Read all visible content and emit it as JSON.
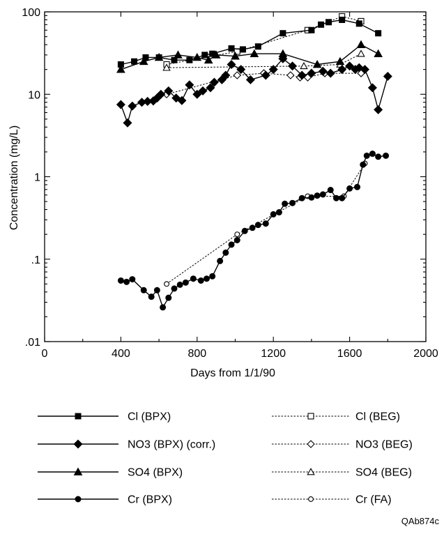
{
  "chart_data": {
    "type": "line",
    "xlabel": "Days from 1/1/90",
    "ylabel": "Concentration (mg/L)",
    "xlim": [
      0,
      2000
    ],
    "ylim": [
      0.01,
      100
    ],
    "yscale": "log",
    "grid": false,
    "legend_position": "below",
    "xticks": [
      0,
      400,
      800,
      1200,
      1600,
      2000
    ],
    "xtick_labels": [
      "0",
      "400",
      "800",
      "1200",
      "1600",
      "2000"
    ],
    "yticks": [
      0.01,
      0.1,
      1,
      10,
      100
    ],
    "ytick_labels": [
      ".01",
      ".1",
      "1",
      "10",
      "100"
    ],
    "series": [
      {
        "name": "Cl (BPX)",
        "marker": "square",
        "filled": true,
        "dashed": false,
        "x": [
          400,
          470,
          530,
          600,
          680,
          760,
          840,
          880,
          980,
          1040,
          1120,
          1250,
          1400,
          1450,
          1490,
          1560,
          1650,
          1750
        ],
        "y": [
          23,
          25,
          28,
          28,
          26,
          26,
          30,
          31,
          36,
          35,
          38,
          55,
          60,
          70,
          75,
          80,
          72,
          55
        ]
      },
      {
        "name": "NO3 (BPX) (corr.)",
        "marker": "diamond",
        "filled": true,
        "dashed": false,
        "x": [
          400,
          435,
          460,
          510,
          540,
          570,
          590,
          610,
          650,
          690,
          720,
          760,
          800,
          830,
          870,
          890,
          930,
          950,
          980,
          1030,
          1080,
          1160,
          1200,
          1250,
          1300,
          1350,
          1400,
          1460,
          1500,
          1560,
          1600,
          1630,
          1650,
          1680,
          1720,
          1750,
          1800
        ],
        "y": [
          7.5,
          4.5,
          7.2,
          8.0,
          8.2,
          8.3,
          9.0,
          10,
          11,
          9.0,
          8.4,
          13,
          10,
          11,
          12,
          14,
          15,
          17,
          23,
          20,
          15,
          17,
          20,
          27,
          22,
          17,
          18,
          19,
          18,
          20,
          22,
          20,
          21,
          20,
          12,
          6.5,
          16.5
        ]
      },
      {
        "name": "SO4 (BPX)",
        "marker": "triangle",
        "filled": true,
        "dashed": false,
        "x": [
          400,
          520,
          600,
          700,
          800,
          860,
          900,
          1000,
          1100,
          1250,
          1430,
          1550,
          1660,
          1750
        ],
        "y": [
          20,
          25,
          28,
          30,
          28,
          26,
          30,
          29,
          31,
          31,
          23,
          25,
          40,
          31
        ]
      },
      {
        "name": "Cr (BPX)",
        "marker": "circle",
        "filled": true,
        "dashed": false,
        "x": [
          400,
          430,
          460,
          520,
          560,
          590,
          620,
          650,
          680,
          710,
          740,
          780,
          820,
          850,
          880,
          920,
          950,
          980,
          1010,
          1050,
          1090,
          1120,
          1160,
          1200,
          1230,
          1260,
          1300,
          1350,
          1400,
          1430,
          1460,
          1500,
          1530,
          1560,
          1600,
          1640,
          1670,
          1690,
          1720,
          1750,
          1790
        ],
        "y": [
          0.055,
          0.053,
          0.057,
          0.042,
          0.035,
          0.042,
          0.026,
          0.034,
          0.044,
          0.049,
          0.052,
          0.058,
          0.055,
          0.058,
          0.062,
          0.095,
          0.12,
          0.15,
          0.17,
          0.22,
          0.24,
          0.26,
          0.27,
          0.35,
          0.37,
          0.47,
          0.48,
          0.55,
          0.56,
          0.59,
          0.61,
          0.69,
          0.55,
          0.55,
          0.72,
          0.75,
          1.4,
          1.8,
          1.9,
          1.75,
          1.8
        ]
      },
      {
        "name": "Cl (BEG)",
        "marker": "square",
        "filled": false,
        "dashed": true,
        "x": [
          640,
          1010,
          1380,
          1560,
          1660
        ],
        "y": [
          23,
          33,
          60,
          88,
          77
        ]
      },
      {
        "name": "NO3 (BEG)",
        "marker": "diamond",
        "filled": false,
        "dashed": true,
        "x": [
          640,
          1010,
          1150,
          1290,
          1340,
          1380,
          1470,
          1660
        ],
        "y": [
          10,
          17,
          18,
          17,
          16,
          16,
          18,
          18
        ]
      },
      {
        "name": "SO4 (BEG)",
        "marker": "triangle",
        "filled": false,
        "dashed": true,
        "x": [
          640,
          1360,
          1550,
          1660
        ],
        "y": [
          21,
          22,
          23,
          31
        ]
      },
      {
        "name": "Cr (FA)",
        "marker": "circle",
        "filled": false,
        "dashed": true,
        "x": [
          640,
          1010,
          1380,
          1570,
          1680
        ],
        "y": [
          0.05,
          0.2,
          0.58,
          0.58,
          1.45
        ]
      }
    ],
    "legend": {
      "left": [
        "Cl (BPX)",
        "NO3 (BPX) (corr.)",
        "SO4 (BPX)",
        "Cr (BPX)"
      ],
      "right": [
        "Cl (BEG)",
        "NO3 (BEG)",
        "SO4 (BEG)",
        "Cr (FA)"
      ]
    },
    "figure_code": "QAb874c"
  }
}
